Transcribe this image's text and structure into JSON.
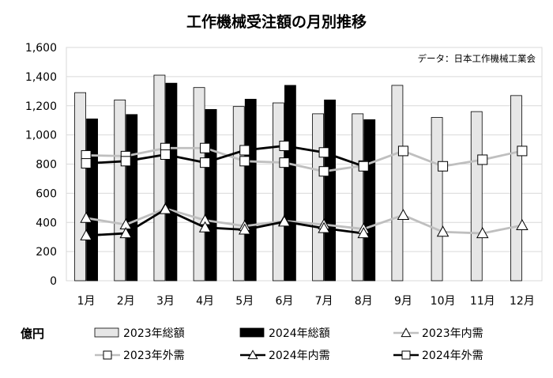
{
  "chart_data": {
    "type": "bar+line",
    "title": "工作機械受注額の月別推移",
    "source_note": "データ：日本工作機械工業会",
    "unit_label": "億円",
    "categories": [
      "1月",
      "2月",
      "3月",
      "4月",
      "5月",
      "6月",
      "7月",
      "8月",
      "9月",
      "10月",
      "11月",
      "12月"
    ],
    "ylim": [
      0,
      1600
    ],
    "yticks": [
      0,
      200,
      400,
      600,
      800,
      1000,
      1200,
      1400,
      1600
    ],
    "ytick_labels": [
      "0",
      "200",
      "400",
      "600",
      "800",
      "1,000",
      "1,200",
      "1,400",
      "1,600"
    ],
    "grid": true,
    "legend_position": "bottom",
    "series": [
      {
        "name": "2023年総額",
        "kind": "bar",
        "color": "#e6e6e6",
        "values": [
          1290,
          1240,
          1410,
          1325,
          1195,
          1220,
          1145,
          1145,
          1340,
          1120,
          1160,
          1270
        ]
      },
      {
        "name": "2024年総額",
        "kind": "bar",
        "color": "#000000",
        "values": [
          1110,
          1140,
          1355,
          1175,
          1245,
          1340,
          1240,
          1105,
          null,
          null,
          null,
          null
        ]
      },
      {
        "name": "2023年内需",
        "kind": "line",
        "marker": "triangle",
        "color": "#bfbfbf",
        "values": [
          430,
          385,
          495,
          415,
          375,
          410,
          385,
          355,
          450,
          335,
          325,
          380
        ]
      },
      {
        "name": "2023年外需",
        "kind": "line",
        "marker": "square",
        "color": "#bfbfbf",
        "values": [
          860,
          855,
          910,
          910,
          820,
          810,
          750,
          790,
          890,
          785,
          830,
          890
        ]
      },
      {
        "name": "2024年内需",
        "kind": "line",
        "marker": "triangle",
        "color": "#000000",
        "values": [
          310,
          325,
          490,
          365,
          350,
          405,
          360,
          325,
          null,
          null,
          null,
          null
        ]
      },
      {
        "name": "2024年外需",
        "kind": "line",
        "marker": "square",
        "color": "#000000",
        "values": [
          805,
          820,
          865,
          810,
          895,
          925,
          880,
          785,
          null,
          null,
          null,
          null
        ]
      }
    ]
  }
}
